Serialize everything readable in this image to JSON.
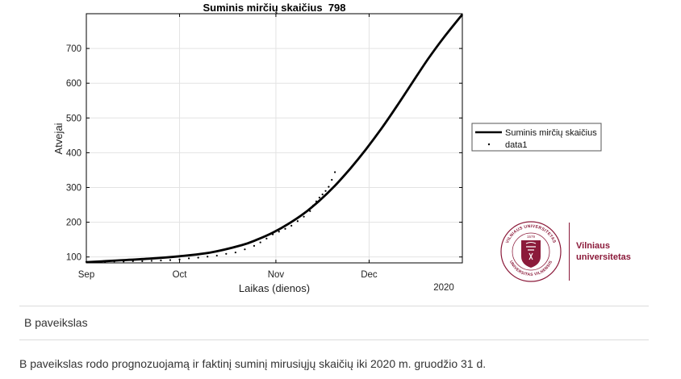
{
  "chart_data": {
    "type": "line",
    "title": "Suminis mirčių skaičius  798",
    "xlabel": "Laikas (dienos)",
    "ylabel": "Atvejai",
    "x_ticks": [
      "Sep",
      "Oct",
      "Nov",
      "Dec"
    ],
    "x_year_label": "2020",
    "xlim": [
      "2020-09-01",
      "2020-12-31"
    ],
    "ylim": [
      83,
      800
    ],
    "y_ticks": [
      100,
      200,
      300,
      400,
      500,
      600,
      700
    ],
    "grid": true,
    "legend_position": "right",
    "series": [
      {
        "name": "Suminis mirčių skaičius",
        "style": "line",
        "color": "#000000",
        "x": [
          "2020-09-01",
          "2020-09-11",
          "2020-09-21",
          "2020-10-01",
          "2020-10-11",
          "2020-10-21",
          "2020-10-26",
          "2020-10-31",
          "2020-11-05",
          "2020-11-10",
          "2020-11-15",
          "2020-11-20",
          "2020-11-25",
          "2020-11-30",
          "2020-12-05",
          "2020-12-10",
          "2020-12-15",
          "2020-12-20",
          "2020-12-25",
          "2020-12-31"
        ],
        "y": [
          85,
          90,
          95,
          102,
          113,
          134,
          150,
          170,
          195,
          225,
          262,
          305,
          355,
          410,
          470,
          535,
          603,
          670,
          731,
          798
        ]
      },
      {
        "name": "data1",
        "style": "points",
        "color": "#000000",
        "x": [
          "2020-09-01",
          "2020-09-04",
          "2020-09-07",
          "2020-09-10",
          "2020-09-13",
          "2020-09-16",
          "2020-09-19",
          "2020-09-22",
          "2020-09-25",
          "2020-09-28",
          "2020-10-01",
          "2020-10-04",
          "2020-10-07",
          "2020-10-10",
          "2020-10-13",
          "2020-10-16",
          "2020-10-19",
          "2020-10-22",
          "2020-10-25",
          "2020-10-27",
          "2020-10-29",
          "2020-10-31",
          "2020-11-02",
          "2020-11-04",
          "2020-11-06",
          "2020-11-08",
          "2020-11-10",
          "2020-11-12",
          "2020-11-13",
          "2020-11-14",
          "2020-11-15",
          "2020-11-16",
          "2020-11-17",
          "2020-11-18",
          "2020-11-19",
          "2020-11-20"
        ],
        "y": [
          86,
          86,
          86,
          87,
          87,
          88,
          88,
          89,
          90,
          91,
          93,
          96,
          98,
          101,
          104,
          109,
          113,
          122,
          132,
          142,
          153,
          165,
          173,
          181,
          190,
          203,
          216,
          232,
          248,
          260,
          271,
          280,
          290,
          302,
          322,
          344
        ]
      }
    ]
  },
  "logo": {
    "name_line1": "Vilniaus",
    "name_line2": "universitetas",
    "seal_text_top": "VILNIAUS UNIVERSITETAS",
    "seal_text_bottom": "UNIVERSITAS VILNENSIS",
    "seal_year": "1579",
    "brand_color": "#8b1a3a"
  },
  "caption": {
    "label": "B paveikslas",
    "text": "B paveikslas rodo prognozuojamą ir faktinį suminį mirusiųjų skaičių iki 2020 m. gruodžio 31 d."
  }
}
